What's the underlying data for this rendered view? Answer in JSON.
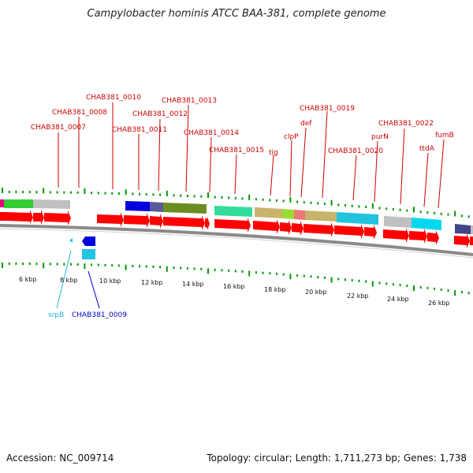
{
  "title": "Campylobacter hominis ATCC BAA-381, complete genome",
  "accession": "Accession: NC_009714",
  "topology": "Topology: circular; Length: 1,711,273 bp; Genes: 1,738",
  "ticks": [
    "6 kbp",
    "8 kbp",
    "10 kbp",
    "12 kbp",
    "14 kbp",
    "16 kbp",
    "18 kbp",
    "20 kbp",
    "22 kbp",
    "24 kbp",
    "26 kbp"
  ],
  "gene_labels_top": [
    "CHAB381_0007",
    "CHAB381_0008",
    "CHAB381_0010",
    "CHAB381_0011",
    "CHAB381_0012",
    "CHAB381_0013",
    "CHAB381_0014",
    "CHAB381_0015",
    "tig",
    "clpP",
    "def",
    "CHAB381_0019",
    "CHAB381_0020",
    "purN",
    "CHAB381_0022",
    "ttdA",
    "fumB"
  ],
  "gene_labels_bottom": [
    "srpB",
    "CHAB381_0009"
  ],
  "colors": {
    "label_red": "#cc0000",
    "label_cyan": "#22b8e0",
    "label_blue": "#0000cc",
    "arrow_red": "#ff0000",
    "backbone": "#808080",
    "gc_green": "#009900"
  }
}
